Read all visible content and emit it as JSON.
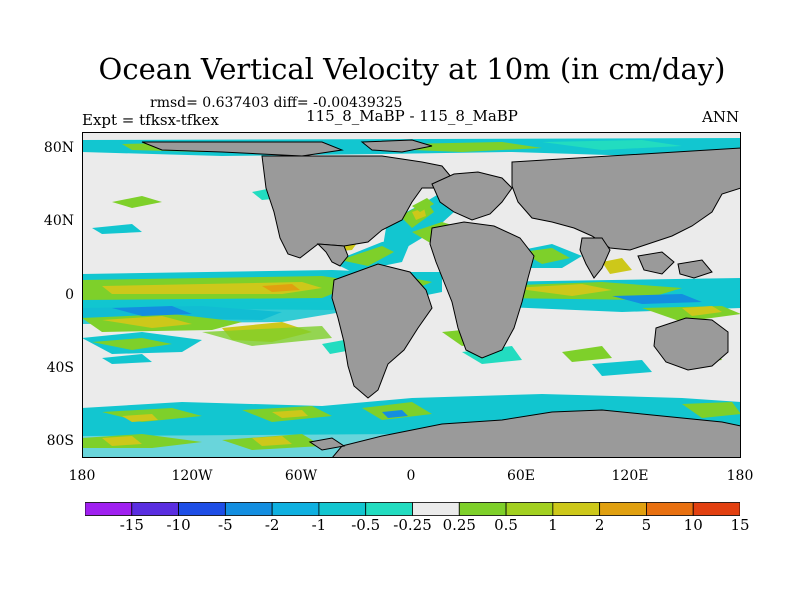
{
  "title": "Ocean Vertical Velocity at 10m (in cm/day)",
  "stats": "rmsd= 0.637403 diff= -0.00439325",
  "expt": "Expt = tfksx-tfkex",
  "case": "115_8_MaBP - 115_8_MaBP",
  "season": "ANN",
  "lat_labels": [
    "80N",
    "40N",
    "0",
    "40S",
    "80S"
  ],
  "lon_labels": [
    "180",
    "120W",
    "60W",
    "0",
    "60E",
    "120E",
    "180"
  ],
  "colorbar": {
    "labels": [
      "-15",
      "-10",
      "-5",
      "-2",
      "-1",
      "-0.5",
      "-0.25",
      "0.25",
      "0.5",
      "1",
      "2",
      "5",
      "10",
      "15"
    ],
    "colors": [
      "#a020f0",
      "#5a2ee0",
      "#1e4ee6",
      "#138ee0",
      "#0fb0e0",
      "#12c6d0",
      "#22dcc0",
      "#ebebeb",
      "#7ed02a",
      "#a2d020",
      "#cdc81a",
      "#e0a010",
      "#e87010",
      "#e24010"
    ]
  },
  "map_colors": {
    "land": "#9a9a9a",
    "ocean_neutral": "#ebebeb",
    "coastline": "#000000"
  }
}
